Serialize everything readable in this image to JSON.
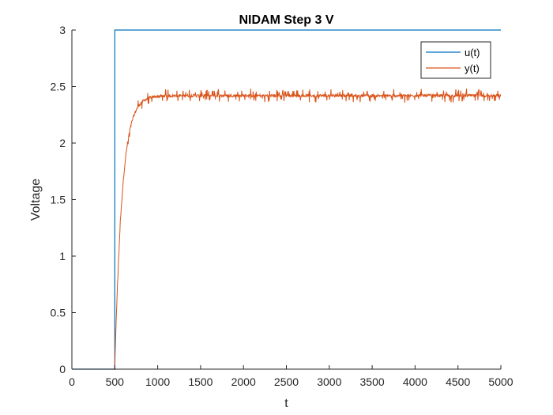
{
  "chart_data": {
    "type": "line",
    "title": "NIDAM Step 3 V",
    "xlabel": "t",
    "ylabel": "Voltage",
    "xlim": [
      0,
      5000
    ],
    "ylim": [
      0,
      3
    ],
    "xticks": [
      0,
      500,
      1000,
      1500,
      2000,
      2500,
      3000,
      3500,
      4000,
      4500,
      5000
    ],
    "xtick_labels": [
      "0",
      "500",
      "1000",
      "1500",
      "2000",
      "2500",
      "3000",
      "3500",
      "4000",
      "4500",
      "5000"
    ],
    "yticks": [
      0,
      0.5,
      1,
      1.5,
      2,
      2.5,
      3
    ],
    "ytick_labels": [
      "0",
      "0.5",
      "1",
      "1.5",
      "2",
      "2.5",
      "3"
    ],
    "grid": false,
    "legend_position": "top-right",
    "series": [
      {
        "name": "u(t)",
        "color": "#0072BD",
        "x": [
          0,
          500,
          500,
          5000
        ],
        "y": [
          0,
          0,
          3,
          3
        ]
      },
      {
        "name": "y(t)",
        "color": "#D95319",
        "model": {
          "step_time": 500,
          "initial": 0,
          "steady_state": 2.42,
          "time_constant": 85,
          "noise_amplitude": 0.035,
          "end_time": 5000
        },
        "x": [
          0,
          500,
          550,
          600,
          650,
          700,
          750,
          800,
          900,
          1000,
          1500,
          2000,
          2500,
          3000,
          3500,
          4000,
          4500,
          5000
        ],
        "y": [
          0,
          0,
          1.07,
          1.66,
          1.99,
          2.17,
          2.28,
          2.33,
          2.39,
          2.41,
          2.42,
          2.42,
          2.42,
          2.42,
          2.42,
          2.42,
          2.42,
          2.42
        ]
      }
    ]
  }
}
